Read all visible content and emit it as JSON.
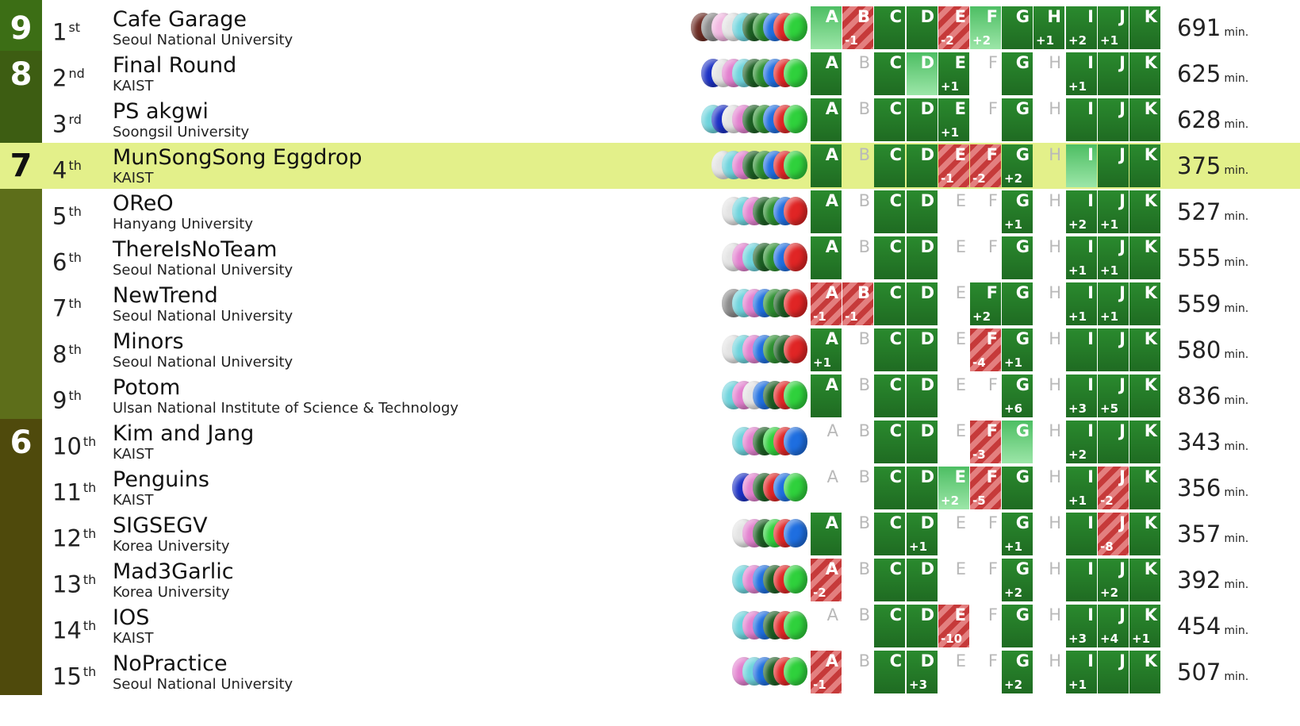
{
  "problem_letters": [
    "A",
    "B",
    "C",
    "D",
    "E",
    "F",
    "G",
    "H",
    "I",
    "J",
    "K"
  ],
  "penalty_unit": "min.",
  "colors": {
    "group_9": "#3c6e15",
    "group_8": "#3d5d12",
    "group_7": "#5d6e1a",
    "group_6": "#4f4a0c",
    "highlight": "#e3f08a"
  },
  "groups": [
    {
      "solved": "9",
      "first_row": 0,
      "rows": 1,
      "color": "#3c6e15"
    },
    {
      "solved": "8",
      "first_row": 1,
      "rows": 2,
      "color": "#3d5d12"
    },
    {
      "solved": "7",
      "first_row": 3,
      "rows": 6,
      "color": "#5d6e1a"
    },
    {
      "solved": "6",
      "first_row": 9,
      "rows": 6,
      "color": "#4f4a0c"
    }
  ],
  "teams": [
    {
      "rank": "1",
      "suffix": "st",
      "name": "Cafe Garage",
      "university": "Seoul National University",
      "penalty": "691",
      "highlight": false,
      "balloons": [
        "#6b2a22",
        "#8a8a8a",
        "#f1b6e0",
        "#e3e3e3",
        "#6dd3dc",
        "#1c5e23",
        "#2c8f2f",
        "#1e6ee0",
        "#e02525",
        "#2fd13c"
      ],
      "cells": [
        [
          "first",
          ""
        ],
        [
          "fail",
          "-1"
        ],
        [
          "solved",
          ""
        ],
        [
          "solved",
          ""
        ],
        [
          "fail",
          "-2"
        ],
        [
          "first",
          "+2"
        ],
        [
          "solved",
          ""
        ],
        [
          "solved",
          "+1"
        ],
        [
          "solved",
          "+2"
        ],
        [
          "solved",
          "+1"
        ],
        [
          "solved",
          ""
        ]
      ]
    },
    {
      "rank": "2",
      "suffix": "nd",
      "name": "Final Round",
      "university": "KAIST",
      "penalty": "625",
      "highlight": false,
      "balloons": [
        "#1a2fc4",
        "#e3e3e3",
        "#e27fce",
        "#6dd3dc",
        "#1c5e23",
        "#2c8f2f",
        "#1e6ee0",
        "#e02525",
        "#2fd13c"
      ],
      "cells": [
        [
          "solved",
          ""
        ],
        [
          "empty",
          ""
        ],
        [
          "solved",
          ""
        ],
        [
          "first",
          ""
        ],
        [
          "solved",
          "+1"
        ],
        [
          "empty",
          ""
        ],
        [
          "solved",
          ""
        ],
        [
          "empty",
          ""
        ],
        [
          "solved",
          "+1"
        ],
        [
          "solved",
          ""
        ],
        [
          "solved",
          ""
        ]
      ]
    },
    {
      "rank": "3",
      "suffix": "rd",
      "name": "PS akgwi",
      "university": "Soongsil University",
      "penalty": "628",
      "highlight": false,
      "balloons": [
        "#6dd3dc",
        "#1a2fc4",
        "#e3e3e3",
        "#e27fce",
        "#1c5e23",
        "#2c8f2f",
        "#1e6ee0",
        "#e02525",
        "#2fd13c"
      ],
      "cells": [
        [
          "solved",
          ""
        ],
        [
          "empty",
          ""
        ],
        [
          "solved",
          ""
        ],
        [
          "solved",
          ""
        ],
        [
          "solved",
          "+1"
        ],
        [
          "empty",
          ""
        ],
        [
          "solved",
          ""
        ],
        [
          "empty",
          ""
        ],
        [
          "solved",
          ""
        ],
        [
          "solved",
          ""
        ],
        [
          "solved",
          ""
        ]
      ]
    },
    {
      "rank": "4",
      "suffix": "th",
      "name": "MunSongSong Eggdrop",
      "university": "KAIST",
      "penalty": "375",
      "highlight": true,
      "balloons": [
        "#e3e3e3",
        "#6dd3dc",
        "#e27fce",
        "#1c5e23",
        "#2c8f2f",
        "#1e6ee0",
        "#e02525",
        "#2fd13c"
      ],
      "cells": [
        [
          "solved",
          ""
        ],
        [
          "empty",
          ""
        ],
        [
          "solved",
          ""
        ],
        [
          "solved",
          ""
        ],
        [
          "fail",
          "-1"
        ],
        [
          "fail",
          "-2"
        ],
        [
          "solved",
          "+2"
        ],
        [
          "empty",
          ""
        ],
        [
          "first",
          ""
        ],
        [
          "solved",
          ""
        ],
        [
          "solved",
          ""
        ]
      ]
    },
    {
      "rank": "5",
      "suffix": "th",
      "name": "OReO",
      "university": "Hanyang University",
      "penalty": "527",
      "highlight": false,
      "balloons": [
        "#e3e3e3",
        "#6dd3dc",
        "#e27fce",
        "#1c5e23",
        "#2c8f2f",
        "#1e6ee0",
        "#e02525"
      ],
      "cells": [
        [
          "solved",
          ""
        ],
        [
          "empty",
          ""
        ],
        [
          "solved",
          ""
        ],
        [
          "solved",
          ""
        ],
        [
          "empty",
          ""
        ],
        [
          "empty",
          ""
        ],
        [
          "solved",
          "+1"
        ],
        [
          "empty",
          ""
        ],
        [
          "solved",
          "+2"
        ],
        [
          "solved",
          "+1"
        ],
        [
          "solved",
          ""
        ]
      ]
    },
    {
      "rank": "6",
      "suffix": "th",
      "name": "ThereIsNoTeam",
      "university": "Seoul National University",
      "penalty": "555",
      "highlight": false,
      "balloons": [
        "#e3e3e3",
        "#e27fce",
        "#6dd3dc",
        "#1c5e23",
        "#2c8f2f",
        "#1e6ee0",
        "#e02525"
      ],
      "cells": [
        [
          "solved",
          ""
        ],
        [
          "empty",
          ""
        ],
        [
          "solved",
          ""
        ],
        [
          "solved",
          ""
        ],
        [
          "empty",
          ""
        ],
        [
          "empty",
          ""
        ],
        [
          "solved",
          ""
        ],
        [
          "empty",
          ""
        ],
        [
          "solved",
          "+1"
        ],
        [
          "solved",
          "+1"
        ],
        [
          "solved",
          ""
        ]
      ]
    },
    {
      "rank": "7",
      "suffix": "th",
      "name": "NewTrend",
      "university": "Seoul National University",
      "penalty": "559",
      "highlight": false,
      "balloons": [
        "#8a8a8a",
        "#6dd3dc",
        "#e27fce",
        "#1e6ee0",
        "#2c8f2f",
        "#1c5e23",
        "#e02525"
      ],
      "cells": [
        [
          "fail",
          "-1"
        ],
        [
          "fail",
          "-1"
        ],
        [
          "solved",
          ""
        ],
        [
          "solved",
          ""
        ],
        [
          "empty",
          ""
        ],
        [
          "solved",
          "+2"
        ],
        [
          "solved",
          ""
        ],
        [
          "empty",
          ""
        ],
        [
          "solved",
          "+1"
        ],
        [
          "solved",
          "+1"
        ],
        [
          "solved",
          ""
        ]
      ]
    },
    {
      "rank": "8",
      "suffix": "th",
      "name": "Minors",
      "university": "Seoul National University",
      "penalty": "580",
      "highlight": false,
      "balloons": [
        "#e3e3e3",
        "#6dd3dc",
        "#e27fce",
        "#1e6ee0",
        "#2c8f2f",
        "#1c5e23",
        "#e02525"
      ],
      "cells": [
        [
          "solved",
          "+1"
        ],
        [
          "empty",
          ""
        ],
        [
          "solved",
          ""
        ],
        [
          "solved",
          ""
        ],
        [
          "empty",
          ""
        ],
        [
          "fail",
          "-4"
        ],
        [
          "solved",
          "+1"
        ],
        [
          "empty",
          ""
        ],
        [
          "solved",
          ""
        ],
        [
          "solved",
          ""
        ],
        [
          "solved",
          ""
        ]
      ]
    },
    {
      "rank": "9",
      "suffix": "th",
      "name": "Potom",
      "university": "Ulsan National Institute of Science & Technology",
      "penalty": "836",
      "highlight": false,
      "balloons": [
        "#6dd3dc",
        "#e27fce",
        "#e3e3e3",
        "#1e6ee0",
        "#1c5e23",
        "#e02525",
        "#2fd13c"
      ],
      "cells": [
        [
          "solved",
          ""
        ],
        [
          "empty",
          ""
        ],
        [
          "solved",
          ""
        ],
        [
          "solved",
          ""
        ],
        [
          "empty",
          ""
        ],
        [
          "empty",
          ""
        ],
        [
          "solved",
          "+6"
        ],
        [
          "empty",
          ""
        ],
        [
          "solved",
          "+3"
        ],
        [
          "solved",
          "+5"
        ],
        [
          "solved",
          ""
        ]
      ]
    },
    {
      "rank": "10",
      "suffix": "th",
      "name": "Kim and Jang",
      "university": "KAIST",
      "penalty": "343",
      "highlight": false,
      "balloons": [
        "#6dd3dc",
        "#e27fce",
        "#1c5e23",
        "#2fd13c",
        "#e02525",
        "#1e6ee0"
      ],
      "cells": [
        [
          "empty",
          ""
        ],
        [
          "empty",
          ""
        ],
        [
          "solved",
          ""
        ],
        [
          "solved",
          ""
        ],
        [
          "empty",
          ""
        ],
        [
          "fail",
          "-3"
        ],
        [
          "first",
          ""
        ],
        [
          "empty",
          ""
        ],
        [
          "solved",
          "+2"
        ],
        [
          "solved",
          ""
        ],
        [
          "solved",
          ""
        ]
      ]
    },
    {
      "rank": "11",
      "suffix": "th",
      "name": "Penguins",
      "university": "KAIST",
      "penalty": "356",
      "highlight": false,
      "balloons": [
        "#1a2fc4",
        "#e27fce",
        "#1c5e23",
        "#e02525",
        "#1e6ee0",
        "#2fd13c"
      ],
      "cells": [
        [
          "empty",
          ""
        ],
        [
          "empty",
          ""
        ],
        [
          "solved",
          ""
        ],
        [
          "solved",
          ""
        ],
        [
          "first",
          "+2"
        ],
        [
          "fail",
          "-5"
        ],
        [
          "solved",
          ""
        ],
        [
          "empty",
          ""
        ],
        [
          "solved",
          "+1"
        ],
        [
          "fail",
          "-2"
        ],
        [
          "solved",
          ""
        ]
      ]
    },
    {
      "rank": "12",
      "suffix": "th",
      "name": "SIGSEGV",
      "university": "Korea University",
      "penalty": "357",
      "highlight": false,
      "balloons": [
        "#e3e3e3",
        "#e27fce",
        "#1c5e23",
        "#2fd13c",
        "#e02525",
        "#1e6ee0"
      ],
      "cells": [
        [
          "solved",
          ""
        ],
        [
          "empty",
          ""
        ],
        [
          "solved",
          ""
        ],
        [
          "solved",
          "+1"
        ],
        [
          "empty",
          ""
        ],
        [
          "empty",
          ""
        ],
        [
          "solved",
          "+1"
        ],
        [
          "empty",
          ""
        ],
        [
          "solved",
          ""
        ],
        [
          "fail",
          "-8"
        ],
        [
          "solved",
          ""
        ]
      ]
    },
    {
      "rank": "13",
      "suffix": "th",
      "name": "Mad3Garlic",
      "university": "Korea University",
      "penalty": "392",
      "highlight": false,
      "balloons": [
        "#6dd3dc",
        "#e27fce",
        "#1e6ee0",
        "#1c5e23",
        "#e02525",
        "#2fd13c"
      ],
      "cells": [
        [
          "fail",
          "-2"
        ],
        [
          "empty",
          ""
        ],
        [
          "solved",
          ""
        ],
        [
          "solved",
          ""
        ],
        [
          "empty",
          ""
        ],
        [
          "empty",
          ""
        ],
        [
          "solved",
          "+2"
        ],
        [
          "empty",
          ""
        ],
        [
          "solved",
          ""
        ],
        [
          "solved",
          "+2"
        ],
        [
          "solved",
          ""
        ]
      ]
    },
    {
      "rank": "14",
      "suffix": "th",
      "name": "IOS",
      "university": "KAIST",
      "penalty": "454",
      "highlight": false,
      "balloons": [
        "#6dd3dc",
        "#e27fce",
        "#1e6ee0",
        "#1c5e23",
        "#e02525",
        "#2fd13c"
      ],
      "cells": [
        [
          "empty",
          ""
        ],
        [
          "empty",
          ""
        ],
        [
          "solved",
          ""
        ],
        [
          "solved",
          ""
        ],
        [
          "fail",
          "-10"
        ],
        [
          "empty",
          ""
        ],
        [
          "solved",
          ""
        ],
        [
          "empty",
          ""
        ],
        [
          "solved",
          "+3"
        ],
        [
          "solved",
          "+4"
        ],
        [
          "solved",
          "+1"
        ]
      ]
    },
    {
      "rank": "15",
      "suffix": "th",
      "name": "NoPractice",
      "university": "Seoul National University",
      "penalty": "507",
      "highlight": false,
      "balloons": [
        "#e27fce",
        "#6dd3dc",
        "#1e6ee0",
        "#1c5e23",
        "#e02525",
        "#2fd13c"
      ],
      "cells": [
        [
          "fail",
          "-1"
        ],
        [
          "empty",
          ""
        ],
        [
          "solved",
          ""
        ],
        [
          "solved",
          "+3"
        ],
        [
          "empty",
          ""
        ],
        [
          "empty",
          ""
        ],
        [
          "solved",
          "+2"
        ],
        [
          "empty",
          ""
        ],
        [
          "solved",
          "+1"
        ],
        [
          "solved",
          ""
        ],
        [
          "solved",
          ""
        ]
      ]
    }
  ]
}
